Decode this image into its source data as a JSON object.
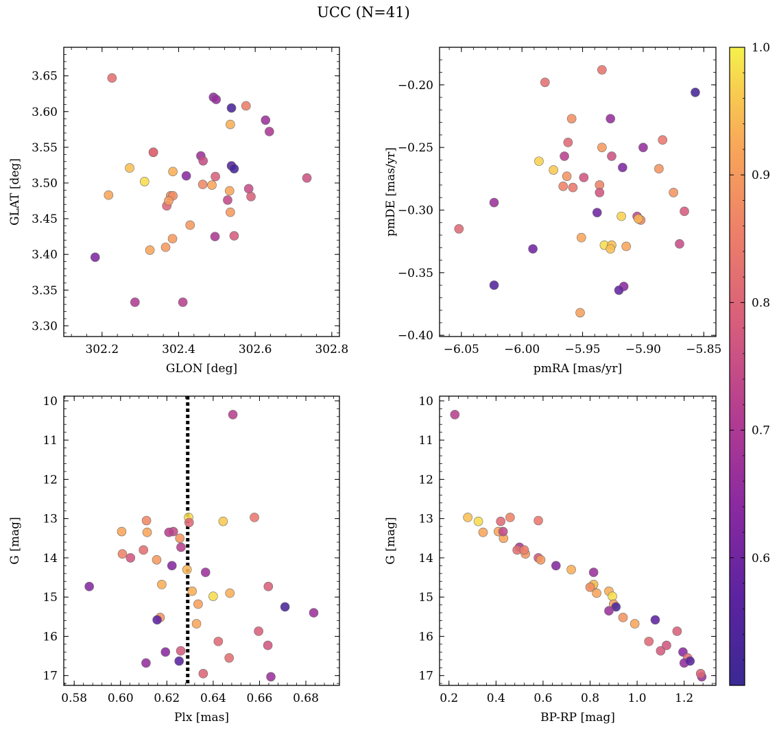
{
  "figure": {
    "title": "UCC (N=41)"
  },
  "colorbar": {
    "colormap": "plasma",
    "vmin": 0.5,
    "vmax": 1.0,
    "ticks": [
      0.6,
      0.7,
      0.8,
      0.9,
      1.0
    ],
    "tick_labels": [
      "0.6",
      "0.7",
      "0.8",
      "0.9",
      "1.0"
    ]
  },
  "chart_data": [
    {
      "type": "scatter",
      "title": "",
      "xlabel": "GLON [deg]",
      "ylabel": "GLAT [deg]",
      "xlim": [
        302.1,
        302.82
      ],
      "ylim": [
        3.285,
        3.69
      ],
      "xticks": [
        302.2,
        302.4,
        302.6,
        302.8
      ],
      "xtick_labels": [
        "302.2",
        "302.4",
        "302.6",
        "302.8"
      ],
      "yticks": [
        3.3,
        3.35,
        3.4,
        3.45,
        3.5,
        3.55,
        3.6,
        3.65
      ],
      "ytick_labels": [
        "3.30",
        "3.35",
        "3.40",
        "3.45",
        "3.50",
        "3.55",
        "3.60",
        "3.65"
      ],
      "x": [
        302.226,
        302.491,
        302.498,
        302.538,
        302.576,
        302.535,
        302.627,
        302.637,
        302.334,
        302.334,
        302.272,
        302.458,
        302.464,
        302.538,
        302.545,
        302.385,
        302.42,
        302.217,
        302.311,
        302.496,
        302.735,
        302.463,
        302.487,
        302.533,
        302.583,
        302.379,
        302.385,
        302.589,
        302.369,
        302.374,
        302.528,
        302.535,
        302.43,
        302.495,
        302.545,
        302.325,
        302.366,
        302.384,
        302.182,
        302.286,
        302.411
      ],
      "y": [
        3.647,
        3.62,
        3.617,
        3.605,
        3.608,
        3.582,
        3.588,
        3.572,
        3.543,
        3.543,
        3.521,
        3.538,
        3.531,
        3.524,
        3.52,
        3.516,
        3.51,
        3.483,
        3.502,
        3.509,
        3.507,
        3.498,
        3.497,
        3.489,
        3.492,
        3.482,
        3.482,
        3.481,
        3.468,
        3.475,
        3.476,
        3.459,
        3.441,
        3.425,
        3.426,
        3.406,
        3.41,
        3.422,
        3.396,
        3.333,
        3.333
      ],
      "color_values": [
        0.82,
        0.65,
        0.66,
        0.53,
        0.85,
        0.93,
        0.67,
        0.7,
        0.81,
        0.81,
        0.95,
        0.67,
        0.75,
        0.55,
        0.52,
        0.93,
        0.64,
        0.92,
        0.98,
        0.79,
        0.76,
        0.87,
        0.92,
        0.92,
        0.75,
        0.88,
        0.88,
        0.79,
        0.8,
        0.9,
        0.74,
        0.9,
        0.9,
        0.7,
        0.78,
        0.92,
        0.9,
        0.9,
        0.62,
        0.71,
        0.72
      ]
    },
    {
      "type": "scatter",
      "title": "",
      "xlabel": "pmRA [mas/yr]",
      "ylabel": "pmDE [mas/yr]",
      "xlim": [
        -6.068,
        -5.84
      ],
      "ylim": [
        -0.401,
        -0.17
      ],
      "xticks": [
        -6.05,
        -6.0,
        -5.95,
        -5.9,
        -5.85
      ],
      "xtick_labels": [
        "−6.05",
        "−6.00",
        "−5.95",
        "−5.90",
        "−5.85"
      ],
      "yticks": [
        -0.4,
        -0.35,
        -0.3,
        -0.25,
        -0.2
      ],
      "ytick_labels": [
        "−0.40",
        "−0.35",
        "−0.30",
        "−0.25",
        "−0.20"
      ],
      "x": [
        -5.934,
        -5.981,
        -5.857,
        -5.959,
        -5.927,
        -5.986,
        -5.934,
        -5.962,
        -5.9,
        -5.884,
        -5.974,
        -5.926,
        -5.917,
        -5.965,
        -5.949,
        -5.963,
        -5.887,
        -5.966,
        -5.936,
        -5.958,
        -5.875,
        -5.936,
        -6.023,
        -5.866,
        -6.052,
        -5.938,
        -5.918,
        -5.905,
        -5.902,
        -5.904,
        -5.87,
        -5.951,
        -5.932,
        -5.914,
        -5.926,
        -5.927,
        -5.991,
        -6.023,
        -5.916,
        -5.92,
        -5.952
      ],
      "y": [
        -0.188,
        -0.198,
        -0.206,
        -0.227,
        -0.227,
        -0.261,
        -0.25,
        -0.246,
        -0.25,
        -0.244,
        -0.268,
        -0.257,
        -0.266,
        -0.257,
        -0.274,
        -0.273,
        -0.267,
        -0.281,
        -0.28,
        -0.282,
        -0.286,
        -0.286,
        -0.294,
        -0.301,
        -0.315,
        -0.302,
        -0.305,
        -0.305,
        -0.308,
        -0.307,
        -0.327,
        -0.322,
        -0.328,
        -0.329,
        -0.328,
        -0.331,
        -0.331,
        -0.36,
        -0.361,
        -0.364,
        -0.382
      ],
      "color_values": [
        0.83,
        0.82,
        0.52,
        0.88,
        0.66,
        0.97,
        0.9,
        0.81,
        0.66,
        0.84,
        0.96,
        0.76,
        0.62,
        0.72,
        0.77,
        0.89,
        0.89,
        0.86,
        0.86,
        0.84,
        0.89,
        0.77,
        0.67,
        0.78,
        0.81,
        0.6,
        0.97,
        0.74,
        0.87,
        0.94,
        0.75,
        0.92,
        0.98,
        0.92,
        0.95,
        0.95,
        0.6,
        0.55,
        0.64,
        0.58,
        0.91
      ]
    },
    {
      "type": "scatter",
      "title": "",
      "xlabel": "Plx [mas]",
      "ylabel": "G [mag]",
      "xlim": [
        0.5755,
        0.6945
      ],
      "ylim": [
        17.25,
        9.88
      ],
      "y_inverted": true,
      "xticks": [
        0.58,
        0.6,
        0.62,
        0.64,
        0.66,
        0.68
      ],
      "xtick_labels": [
        "0.58",
        "0.60",
        "0.62",
        "0.64",
        "0.66",
        "0.68"
      ],
      "yticks": [
        10,
        11,
        12,
        13,
        14,
        15,
        16,
        17
      ],
      "ytick_labels": [
        "10",
        "11",
        "12",
        "13",
        "14",
        "15",
        "16",
        "17"
      ],
      "vline_x": 0.629,
      "x": [
        0.6485,
        0.6112,
        0.6294,
        0.6296,
        0.6578,
        0.6005,
        0.6115,
        0.6228,
        0.6209,
        0.6443,
        0.6256,
        0.6008,
        0.6099,
        0.6261,
        0.6043,
        0.6156,
        0.6222,
        0.6287,
        0.6367,
        0.6178,
        0.5865,
        0.6472,
        0.6638,
        0.6309,
        0.64,
        0.671,
        0.6335,
        0.6834,
        0.6171,
        0.6158,
        0.6328,
        0.6596,
        0.6422,
        0.6636,
        0.6194,
        0.626,
        0.6469,
        0.6253,
        0.611,
        0.6357,
        0.6649
      ],
      "y": [
        10.35,
        13.05,
        12.97,
        13.1,
        12.97,
        13.33,
        13.35,
        13.33,
        13.35,
        13.07,
        13.5,
        13.9,
        13.8,
        13.73,
        14.0,
        14.05,
        14.2,
        14.3,
        14.37,
        14.68,
        14.73,
        14.9,
        14.73,
        14.85,
        14.98,
        15.25,
        15.18,
        15.4,
        15.52,
        15.58,
        15.68,
        15.87,
        16.13,
        16.23,
        16.4,
        16.37,
        16.55,
        16.63,
        16.68,
        16.95,
        17.03
      ],
      "color_values": [
        0.72,
        0.87,
        0.98,
        0.81,
        0.84,
        0.92,
        0.92,
        0.74,
        0.72,
        0.96,
        0.89,
        0.86,
        0.82,
        0.72,
        0.77,
        0.9,
        0.63,
        0.94,
        0.67,
        0.93,
        0.63,
        0.93,
        0.79,
        0.93,
        0.98,
        0.53,
        0.91,
        0.67,
        0.89,
        0.57,
        0.92,
        0.79,
        0.81,
        0.77,
        0.64,
        0.78,
        0.82,
        0.56,
        0.66,
        0.8,
        0.67
      ]
    },
    {
      "type": "scatter",
      "title": "",
      "xlabel": "BP-RP [mag]",
      "ylabel": "G [mag]",
      "xlim": [
        0.16,
        1.335
      ],
      "ylim": [
        17.25,
        9.88
      ],
      "y_inverted": true,
      "xticks": [
        0.2,
        0.4,
        0.6,
        0.8,
        1.0,
        1.2
      ],
      "xtick_labels": [
        "0.2",
        "0.4",
        "0.6",
        "0.8",
        "1.0",
        "1.2"
      ],
      "yticks": [
        10,
        11,
        12,
        13,
        14,
        15,
        16,
        17
      ],
      "ytick_labels": [
        "10",
        "11",
        "12",
        "13",
        "14",
        "15",
        "16",
        "17"
      ],
      "x": [
        0.225,
        0.28,
        0.325,
        0.345,
        0.41,
        0.42,
        0.432,
        0.46,
        0.5,
        0.49,
        0.525,
        0.52,
        0.58,
        0.59,
        0.58,
        0.655,
        0.72,
        0.815,
        0.81,
        0.815,
        0.828,
        0.88,
        0.895,
        0.9,
        0.91,
        0.94,
        0.99,
        1.077,
        1.05,
        1.1,
        1.125,
        1.17,
        1.195,
        1.215,
        1.2,
        1.225,
        1.275,
        1.27,
        0.43,
        0.88,
        0.8
      ],
      "y": [
        10.35,
        12.97,
        13.07,
        13.35,
        13.33,
        13.07,
        13.5,
        12.97,
        13.73,
        13.8,
        13.9,
        13.8,
        14.0,
        14.05,
        13.05,
        14.2,
        14.3,
        14.37,
        14.73,
        14.68,
        14.9,
        14.85,
        14.98,
        15.18,
        15.25,
        15.52,
        15.68,
        15.58,
        16.13,
        16.37,
        16.23,
        15.87,
        16.4,
        16.55,
        16.68,
        16.63,
        17.03,
        16.95,
        13.33,
        15.35,
        14.75
      ],
      "color_values": [
        0.72,
        0.95,
        0.98,
        0.92,
        0.92,
        0.81,
        0.92,
        0.86,
        0.7,
        0.82,
        0.89,
        0.85,
        0.77,
        0.9,
        0.84,
        0.63,
        0.93,
        0.67,
        0.93,
        0.95,
        0.92,
        0.93,
        0.98,
        0.91,
        0.53,
        0.89,
        0.92,
        0.57,
        0.81,
        0.78,
        0.77,
        0.79,
        0.64,
        0.82,
        0.66,
        0.56,
        0.67,
        0.8,
        0.74,
        0.67,
        0.88
      ]
    }
  ]
}
